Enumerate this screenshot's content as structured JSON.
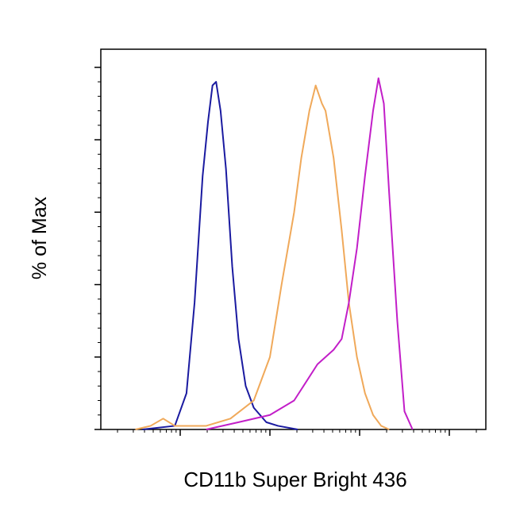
{
  "chart_data": {
    "type": "line",
    "xlabel": "CD11b Super Bright 436",
    "ylabel": "% of Max",
    "xscale": "log-decades",
    "xlim": [
      0.115,
      4.407
    ],
    "xticks": [
      1,
      2,
      3,
      4
    ],
    "ylim": [
      0,
      105
    ],
    "yticks": [
      0,
      20,
      40,
      60,
      80,
      100
    ],
    "series": [
      {
        "color": "#1a1aa0",
        "x": [
          0.58,
          0.94,
          1.07,
          1.16,
          1.25,
          1.31,
          1.36,
          1.4,
          1.45,
          1.51,
          1.58,
          1.65,
          1.73,
          1.82,
          1.96,
          2.09,
          2.31
        ],
        "values": [
          0,
          1,
          10,
          35,
          70,
          85,
          95,
          96,
          88,
          72,
          45,
          25,
          12,
          6,
          2,
          1,
          0
        ]
      },
      {
        "color": "#f0a95a",
        "x": [
          0.5,
          0.67,
          0.81,
          0.94,
          1.29,
          1.56,
          1.82,
          2.0,
          2.13,
          2.27,
          2.35,
          2.44,
          2.51,
          2.58,
          2.62,
          2.71,
          2.8,
          2.88,
          2.97,
          3.06,
          3.15,
          3.24,
          3.33
        ],
        "values": [
          0,
          1,
          3,
          1,
          1,
          3,
          8,
          20,
          40,
          60,
          75,
          88,
          95,
          90,
          88,
          75,
          55,
          35,
          20,
          10,
          4,
          1,
          0
        ]
      },
      {
        "color": "#c21ec8",
        "x": [
          1.29,
          1.65,
          2.0,
          2.27,
          2.53,
          2.71,
          2.8,
          2.88,
          2.97,
          3.06,
          3.15,
          3.21,
          3.27,
          3.33,
          3.42,
          3.5,
          3.59
        ],
        "values": [
          0,
          2,
          4,
          8,
          18,
          22,
          25,
          35,
          50,
          70,
          88,
          97,
          90,
          65,
          30,
          5,
          0
        ]
      }
    ]
  }
}
